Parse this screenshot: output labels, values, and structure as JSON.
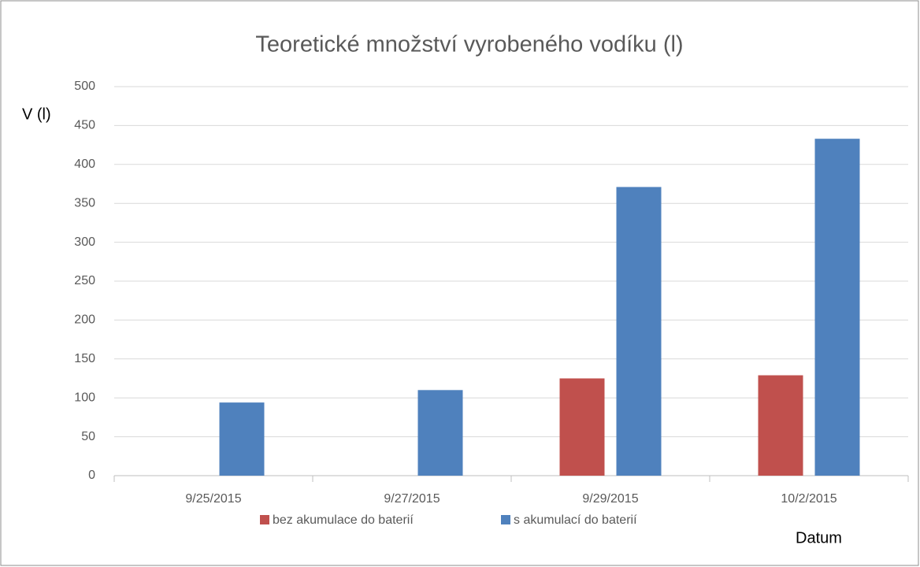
{
  "chart_data": {
    "type": "bar",
    "title": "Teoretické množství vyrobeného vodíku (l)",
    "y_label": "V (l)",
    "x_label": "Datum",
    "categories": [
      "9/25/2015",
      "9/27/2015",
      "9/29/2015",
      "10/2/2015"
    ],
    "series": [
      {
        "name": "bez akumulace do baterií",
        "color": "#c0504d",
        "values": [
          null,
          null,
          125,
          129
        ]
      },
      {
        "name": "s akumulací do baterií",
        "color": "#4f81bd",
        "values": [
          94,
          110,
          371,
          433
        ]
      }
    ],
    "ylim": [
      0,
      500
    ],
    "yticks": [
      0,
      50,
      100,
      150,
      200,
      250,
      300,
      350,
      400,
      450,
      500
    ],
    "grid": true,
    "legend": "bottom"
  }
}
